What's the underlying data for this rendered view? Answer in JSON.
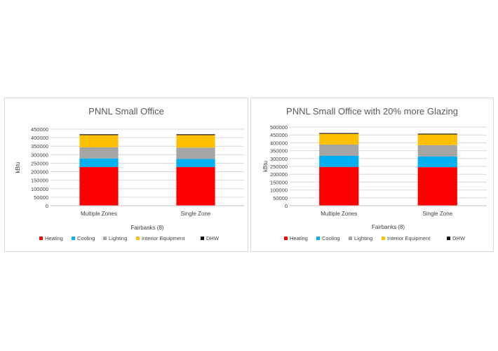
{
  "chart_data": [
    {
      "type": "bar",
      "stacked": true,
      "title": "PNNL Small Office",
      "xlabel": "Fairbanks (8)",
      "ylabel": "kBtu",
      "ylim": [
        0,
        450000
      ],
      "yticks": [
        "0",
        "50000",
        "100000",
        "150000",
        "200000",
        "250000",
        "300000",
        "350000",
        "400000",
        "450000"
      ],
      "categories": [
        "Multiple Zones",
        "Single Zone"
      ],
      "legend": "bottom",
      "grid": true,
      "series": [
        {
          "name": "Heating",
          "color": "#ff0000",
          "values": [
            228000,
            228000
          ]
        },
        {
          "name": "Cooling",
          "color": "#00b0f0",
          "values": [
            50000,
            47000
          ]
        },
        {
          "name": "Lighting",
          "color": "#a5a5a5",
          "values": [
            65000,
            67000
          ]
        },
        {
          "name": "Interior Equipment",
          "color": "#ffc000",
          "values": [
            72000,
            73000
          ]
        },
        {
          "name": "DHW",
          "color": "#111111",
          "values": [
            5000,
            5000
          ]
        }
      ]
    },
    {
      "type": "bar",
      "stacked": true,
      "title": "PNNL Small Office with 20% more Glazing",
      "xlabel": "Fairbanks (8)",
      "ylabel": "kBtu",
      "ylim": [
        0,
        500000
      ],
      "yticks": [
        "0",
        "50000",
        "100000",
        "150000",
        "200000",
        "250000",
        "300000",
        "350000",
        "400000",
        "450000",
        "500000"
      ],
      "categories": [
        "Multiple Zones",
        "Single Zone"
      ],
      "legend": "bottom",
      "grid": true,
      "series": [
        {
          "name": "Heating",
          "color": "#ff0000",
          "values": [
            247000,
            245000
          ]
        },
        {
          "name": "Cooling",
          "color": "#00b0f0",
          "values": [
            70000,
            68000
          ]
        },
        {
          "name": "Lighting",
          "color": "#a5a5a5",
          "values": [
            72000,
            72000
          ]
        },
        {
          "name": "Interior Equipment",
          "color": "#ffc000",
          "values": [
            68000,
            68000
          ]
        },
        {
          "name": "DHW",
          "color": "#111111",
          "values": [
            5000,
            5000
          ]
        }
      ]
    }
  ]
}
